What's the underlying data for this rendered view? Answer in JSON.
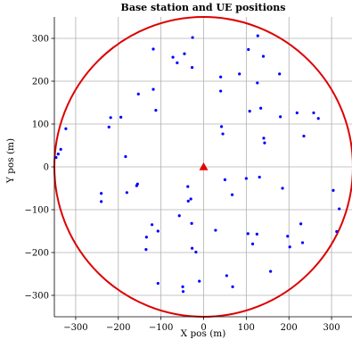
{
  "chart_data": {
    "type": "scatter",
    "title": "Base station and UE positions",
    "xlabel": "X pos (m)",
    "ylabel": "Y pos (m)",
    "xlim": [
      -350,
      350
    ],
    "ylim": [
      -350,
      350
    ],
    "xticks": [
      -300,
      -200,
      -100,
      0,
      100,
      200,
      300
    ],
    "yticks": [
      300,
      200,
      100,
      0,
      -100,
      -200,
      -300
    ],
    "xtick_labels": [
      "−300",
      "−200",
      "−100",
      "0",
      "100",
      "200",
      "300"
    ],
    "ytick_labels": [
      "300",
      "200",
      "100",
      "0",
      "−100",
      "−200",
      "−300"
    ],
    "grid": true,
    "colors": {
      "ue": "#0000ff",
      "base_station": "#e60000",
      "coverage_circle": "#dd0000",
      "grid": "#b0b0b0"
    },
    "base_station": {
      "x": 0,
      "y": 0,
      "marker": "triangle"
    },
    "coverage_circle": {
      "center": [
        0,
        0
      ],
      "radius": 350
    },
    "ue_points": [
      {
        "x": -346,
        "y": 22
      },
      {
        "x": -341,
        "y": 30
      },
      {
        "x": -335,
        "y": 41
      },
      {
        "x": -323,
        "y": 89
      },
      {
        "x": -240,
        "y": -62
      },
      {
        "x": -240,
        "y": -81
      },
      {
        "x": -222,
        "y": 93
      },
      {
        "x": -218,
        "y": 115
      },
      {
        "x": -194,
        "y": 116
      },
      {
        "x": -183,
        "y": 24
      },
      {
        "x": -180,
        "y": -60
      },
      {
        "x": -157,
        "y": -44
      },
      {
        "x": -155,
        "y": -40
      },
      {
        "x": -153,
        "y": 170
      },
      {
        "x": -135,
        "y": -193
      },
      {
        "x": -134,
        "y": -164
      },
      {
        "x": -121,
        "y": -135
      },
      {
        "x": -118,
        "y": 275
      },
      {
        "x": -118,
        "y": 181
      },
      {
        "x": -112,
        "y": 132
      },
      {
        "x": -107,
        "y": -150
      },
      {
        "x": -107,
        "y": -272
      },
      {
        "x": -72,
        "y": 256
      },
      {
        "x": -62,
        "y": 243
      },
      {
        "x": -57,
        "y": -114
      },
      {
        "x": -49,
        "y": -280
      },
      {
        "x": -48,
        "y": -291
      },
      {
        "x": -45,
        "y": 264
      },
      {
        "x": -37,
        "y": -46
      },
      {
        "x": -36,
        "y": -80
      },
      {
        "x": -30,
        "y": -75
      },
      {
        "x": -28,
        "y": -132
      },
      {
        "x": -27,
        "y": -190
      },
      {
        "x": -27,
        "y": 232
      },
      {
        "x": -26,
        "y": 302
      },
      {
        "x": -18,
        "y": -199
      },
      {
        "x": -10,
        "y": -267
      },
      {
        "x": 28,
        "y": -148
      },
      {
        "x": 40,
        "y": 210
      },
      {
        "x": 40,
        "y": 177
      },
      {
        "x": 42,
        "y": 94
      },
      {
        "x": 45,
        "y": 77
      },
      {
        "x": 50,
        "y": -30
      },
      {
        "x": 54,
        "y": -254
      },
      {
        "x": 67,
        "y": -65
      },
      {
        "x": 68,
        "y": -280
      },
      {
        "x": 84,
        "y": 217
      },
      {
        "x": 100,
        "y": -27
      },
      {
        "x": 104,
        "y": -156
      },
      {
        "x": 105,
        "y": 274
      },
      {
        "x": 108,
        "y": 130
      },
      {
        "x": 115,
        "y": -180
      },
      {
        "x": 125,
        "y": -157
      },
      {
        "x": 126,
        "y": 196
      },
      {
        "x": 127,
        "y": 306
      },
      {
        "x": 131,
        "y": -24
      },
      {
        "x": 134,
        "y": 137
      },
      {
        "x": 140,
        "y": 258
      },
      {
        "x": 141,
        "y": 67
      },
      {
        "x": 143,
        "y": 56
      },
      {
        "x": 157,
        "y": -244
      },
      {
        "x": 178,
        "y": 217
      },
      {
        "x": 180,
        "y": 117
      },
      {
        "x": 185,
        "y": -50
      },
      {
        "x": 197,
        "y": -162
      },
      {
        "x": 202,
        "y": -187
      },
      {
        "x": 219,
        "y": 126
      },
      {
        "x": 228,
        "y": -133
      },
      {
        "x": 232,
        "y": -177
      },
      {
        "x": 235,
        "y": 72
      },
      {
        "x": 258,
        "y": 126
      },
      {
        "x": 269,
        "y": 113
      },
      {
        "x": 304,
        "y": -55
      },
      {
        "x": 312,
        "y": -151
      },
      {
        "x": 318,
        "y": -98
      }
    ]
  }
}
